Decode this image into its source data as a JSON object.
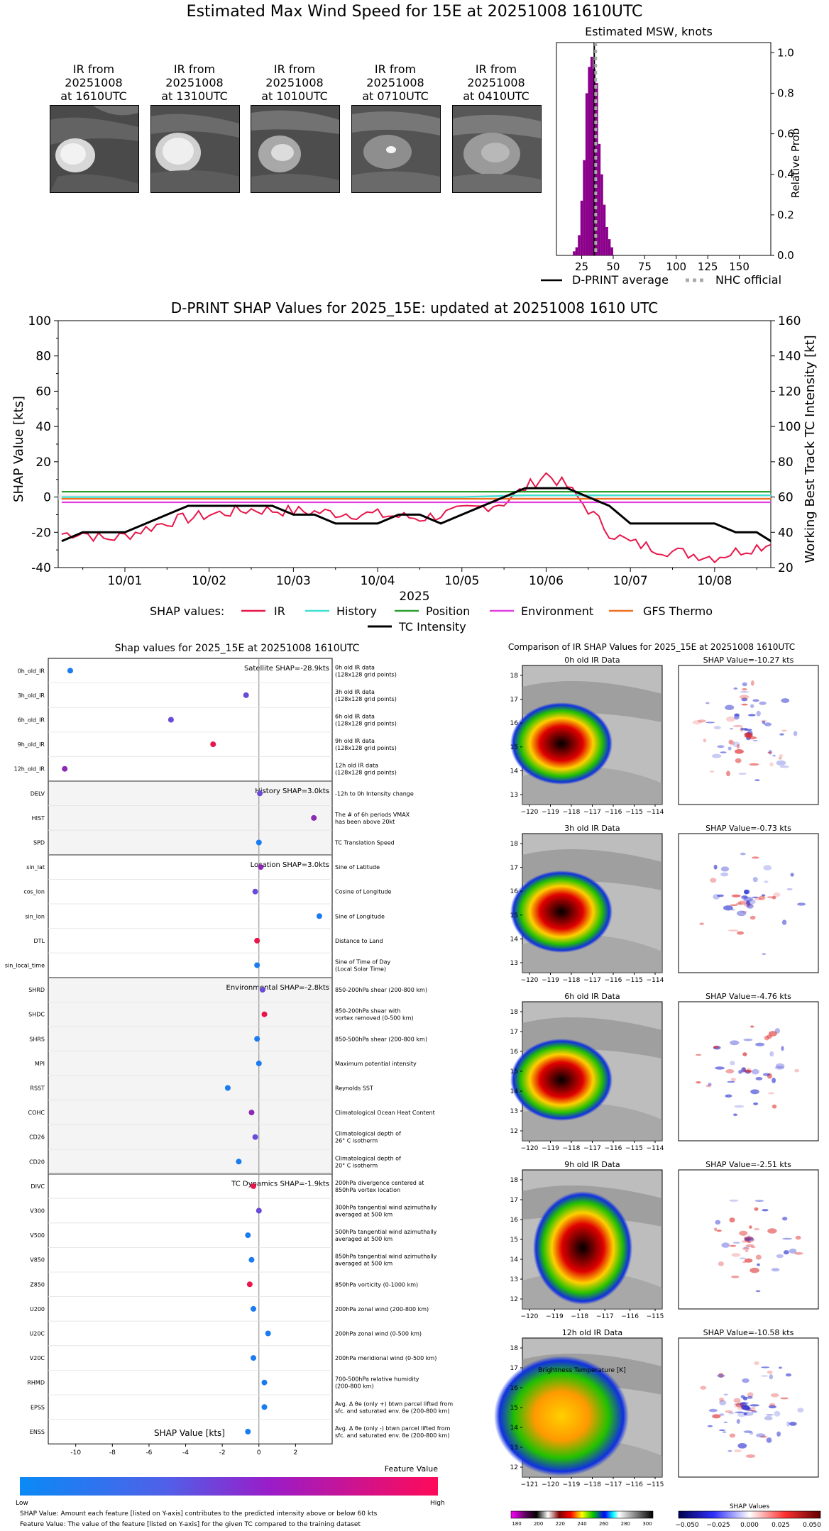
{
  "header": {
    "title": "Estimated Max Wind Speed for 15E at 20251008 1610UTC"
  },
  "ir_thumbnails": [
    {
      "l1": "IR from",
      "l2": "20251008",
      "l3": "at 1610UTC"
    },
    {
      "l1": "IR from",
      "l2": "20251008",
      "l3": "at 1310UTC"
    },
    {
      "l1": "IR from",
      "l2": "20251008",
      "l3": "at 1010UTC"
    },
    {
      "l1": "IR from",
      "l2": "20251008",
      "l3": "at 0710UTC"
    },
    {
      "l1": "IR from",
      "l2": "20251008",
      "l3": "at 0410UTC"
    }
  ],
  "msw_chart": {
    "title": "Estimated MSW, knots",
    "ylabel": "Relative Prob",
    "xticks": [
      "25",
      "50",
      "75",
      "100",
      "125",
      "150"
    ],
    "yticks": [
      "0.0",
      "0.2",
      "0.4",
      "0.6",
      "0.8",
      "1.0"
    ],
    "legend": {
      "avg": "D-PRINT average",
      "nhc": "NHC official"
    }
  },
  "shap_ts": {
    "title": "D-PRINT SHAP Values for 2025_15E: updated at 20251008 1610 UTC",
    "ylabel_left": "SHAP Value [kts]",
    "ylabel_right": "Working Best Track TC Intensity [kt]",
    "xlabel": "2025",
    "yticks_left": [
      "-40",
      "-20",
      "0",
      "20",
      "40",
      "60",
      "80",
      "100"
    ],
    "yticks_right": [
      "20",
      "40",
      "60",
      "80",
      "100",
      "120",
      "140",
      "160"
    ],
    "xticks": [
      "10/01",
      "10/02",
      "10/03",
      "10/04",
      "10/05",
      "10/06",
      "10/07",
      "10/08"
    ],
    "legend_label": "SHAP values:",
    "legend_items": [
      {
        "name": "IR",
        "color": "#e8174b"
      },
      {
        "name": "History",
        "color": "#40e0d0"
      },
      {
        "name": "Position",
        "color": "#2ca02c"
      },
      {
        "name": "Environment",
        "color": "#e040e0"
      },
      {
        "name": "GFS Thermo",
        "color": "#f07020"
      },
      {
        "name": "TC Intensity",
        "color": "#000000"
      }
    ]
  },
  "beeswarm": {
    "title": "Shap values for 2025_15E at 20251008 1610UTC",
    "xlabel": "SHAP Value [kts]",
    "xticks": [
      "-10",
      "-8",
      "-6",
      "-4",
      "-2",
      "0",
      "2"
    ],
    "colorbar_title": "Feature Value",
    "colorbar_low": "Low",
    "colorbar_high": "High",
    "footnote1": "SHAP Value: Amount each feature [listed on Y-axis] contributes to the predicted intensity above or below 60 kts",
    "footnote2": "Feature Value: The value of the feature [listed on Y-axis] for the given TC compared to the training dataset",
    "groups": [
      {
        "label": "Satellite SHAP=-28.9kts",
        "shaded": false
      },
      {
        "label": "History SHAP=3.0kts",
        "shaded": true
      },
      {
        "label": "Location SHAP=3.0kts",
        "shaded": false
      },
      {
        "label": "Environmental SHAP=-2.8kts",
        "shaded": true
      },
      {
        "label": "TC Dynamics SHAP=-1.9kts",
        "shaded": false
      }
    ],
    "features": [
      {
        "name": "0h_old_IR",
        "desc1": "0h old IR data",
        "desc2": "(128x128 grid points)",
        "shap": -10.3,
        "color": "#1a7cf0"
      },
      {
        "name": "3h_old_IR",
        "desc1": "3h old IR data",
        "desc2": "(128x128 grid points)",
        "shap": -0.7,
        "color": "#6a4ad6"
      },
      {
        "name": "6h_old_IR",
        "desc1": "6h old IR data",
        "desc2": "(128x128 grid points)",
        "shap": -4.8,
        "color": "#6a4ad6"
      },
      {
        "name": "9h_old_IR",
        "desc1": "9h old IR data",
        "desc2": "(128x128 grid points)",
        "shap": -2.5,
        "color": "#e8174b"
      },
      {
        "name": "12h_old_IR",
        "desc1": "12h old IR data",
        "desc2": "(128x128 grid points)",
        "shap": -10.6,
        "color": "#8b2bb5"
      },
      {
        "name": "DELV",
        "desc1": "-12h to 0h Intensity change",
        "desc2": "",
        "shap": 0.05,
        "color": "#6a4ad6"
      },
      {
        "name": "HIST",
        "desc1": "The # of 6h periods VMAX",
        "desc2": "has been above 20kt",
        "shap": 3.0,
        "color": "#8b2bb5"
      },
      {
        "name": "SPD",
        "desc1": "TC Translation Speed",
        "desc2": "",
        "shap": 0.0,
        "color": "#1a7cf0"
      },
      {
        "name": "sin_lat",
        "desc1": "Sine of Latitude",
        "desc2": "",
        "shap": 0.1,
        "color": "#8b2bb5"
      },
      {
        "name": "cos_lon",
        "desc1": "Cosine of Longitude",
        "desc2": "",
        "shap": -0.2,
        "color": "#6a4ad6"
      },
      {
        "name": "sin_lon",
        "desc1": "Sine of Longitude",
        "desc2": "",
        "shap": 3.3,
        "color": "#1a7cf0"
      },
      {
        "name": "DTL",
        "desc1": "Distance to Land",
        "desc2": "",
        "shap": -0.1,
        "color": "#e8174b"
      },
      {
        "name": "sin_local_time",
        "desc1": "Sine of Time of Day",
        "desc2": "(Local Solar Time)",
        "shap": -0.1,
        "color": "#1a7cf0"
      },
      {
        "name": "SHRD",
        "desc1": "850-200hPa shear (200-800 km)",
        "desc2": "",
        "shap": 0.2,
        "color": "#6a4ad6"
      },
      {
        "name": "SHDC",
        "desc1": "850-200hPa shear with",
        "desc2": "vortex removed (0-500 km)",
        "shap": 0.3,
        "color": "#e8174b"
      },
      {
        "name": "SHRS",
        "desc1": "850-500hPa shear (200-800 km)",
        "desc2": "",
        "shap": -0.1,
        "color": "#1a7cf0"
      },
      {
        "name": "MPI",
        "desc1": "Maximum potential intensity",
        "desc2": "",
        "shap": 0.0,
        "color": "#1a7cf0"
      },
      {
        "name": "RSST",
        "desc1": "Reynolds SST",
        "desc2": "",
        "shap": -1.7,
        "color": "#1a7cf0"
      },
      {
        "name": "COHC",
        "desc1": "Climatological Ocean Heat Content",
        "desc2": "",
        "shap": -0.4,
        "color": "#8b2bb5"
      },
      {
        "name": "CD26",
        "desc1": "Climatological depth of",
        "desc2": "26° C isotherm",
        "shap": -0.2,
        "color": "#6a4ad6"
      },
      {
        "name": "CD20",
        "desc1": "Climatological depth of",
        "desc2": "20° C isotherm",
        "shap": -1.1,
        "color": "#1a7cf0"
      },
      {
        "name": "DIVC",
        "desc1": "200hPa divergence centered at",
        "desc2": "850hPa vortex location",
        "shap": -0.3,
        "color": "#e8174b"
      },
      {
        "name": "V300",
        "desc1": "300hPa tangential wind azimuthally",
        "desc2": "averaged at 500 km",
        "shap": 0.0,
        "color": "#6a4ad6"
      },
      {
        "name": "V500",
        "desc1": "500hPa tangential wind azimuthally",
        "desc2": "averaged at 500 km",
        "shap": -0.6,
        "color": "#1a7cf0"
      },
      {
        "name": "V850",
        "desc1": "850hPa tangential wind azimuthally",
        "desc2": "averaged at 500 km",
        "shap": -0.4,
        "color": "#1a7cf0"
      },
      {
        "name": "Z850",
        "desc1": "850hPa vorticity (0-1000 km)",
        "desc2": "",
        "shap": -0.5,
        "color": "#e8174b"
      },
      {
        "name": "U200",
        "desc1": "200hPa zonal wind (200-800 km)",
        "desc2": "",
        "shap": -0.3,
        "color": "#1a7cf0"
      },
      {
        "name": "U20C",
        "desc1": "200hPa zonal wind (0-500 km)",
        "desc2": "",
        "shap": 0.5,
        "color": "#1a7cf0"
      },
      {
        "name": "V20C",
        "desc1": "200hPa meridional wind (0-500 km)",
        "desc2": "",
        "shap": -0.3,
        "color": "#1a7cf0"
      },
      {
        "name": "RHMD",
        "desc1": "700-500hPa relative humidity",
        "desc2": "(200-800 km)",
        "shap": 0.3,
        "color": "#1a7cf0"
      },
      {
        "name": "EPSS",
        "desc1": "Avg. Δ θe (only +) btwn parcel lifted from",
        "desc2": "sfc. and saturated env. θe (200-800 km)",
        "shap": 0.3,
        "color": "#1a7cf0"
      },
      {
        "name": "ENSS",
        "desc1": "Avg. Δ θe (only -) btwn parcel lifted from",
        "desc2": "sfc. and saturated env. θe (200-800 km)",
        "shap": -0.6,
        "color": "#1a7cf0"
      }
    ]
  },
  "ir_compare": {
    "title": "Comparison of IR SHAP Values for 2025_15E at 20251008 1610UTC",
    "rows": [
      {
        "left": "0h old IR Data",
        "right": "SHAP Value=-10.27 kts",
        "xt": [
          "−120",
          "−119",
          "−118",
          "−117",
          "−116",
          "−115",
          "−114"
        ],
        "yt": [
          "18",
          "17",
          "16",
          "15",
          "14",
          "13"
        ]
      },
      {
        "left": "3h old IR Data",
        "right": "SHAP Value=-0.73 kts",
        "xt": [
          "−120",
          "−119",
          "−118",
          "−117",
          "−116",
          "−115",
          "−114"
        ],
        "yt": [
          "18",
          "17",
          "16",
          "15",
          "14",
          "13"
        ]
      },
      {
        "left": "6h old IR Data",
        "right": "SHAP Value=-4.76 kts",
        "xt": [
          "−120",
          "−119",
          "−118",
          "−117",
          "−116",
          "−115",
          "−114"
        ],
        "yt": [
          "18",
          "17",
          "16",
          "15",
          "14",
          "13",
          "12"
        ]
      },
      {
        "left": "9h old IR Data",
        "right": "SHAP Value=-2.51 kts",
        "xt": [
          "−120",
          "−119",
          "−118",
          "−117",
          "−116",
          "−115"
        ],
        "yt": [
          "18",
          "17",
          "16",
          "15",
          "14",
          "13",
          "12"
        ]
      },
      {
        "left": "12h old IR Data",
        "right": "SHAP Value=-10.58 kts",
        "xt": [
          "−121",
          "−120",
          "−119",
          "−118",
          "−117",
          "−116",
          "−115"
        ],
        "yt": [
          "18",
          "17",
          "16",
          "15",
          "14",
          "13",
          "12"
        ]
      }
    ],
    "bt_label": "Brightness Temperature [K]",
    "bt_ticks": [
      "180",
      "200",
      "220",
      "240",
      "260",
      "280",
      "300"
    ],
    "sv_label": "SHAP Values",
    "sv_ticks": [
      "−0.050",
      "−0.025",
      "0.000",
      "0.025",
      "0.050"
    ]
  },
  "chart_data": [
    {
      "type": "bar",
      "title": "Estimated MSW, knots",
      "ylabel": "Relative Prob",
      "xlim": [
        5,
        175
      ],
      "ylim": [
        0,
        1.05
      ],
      "x": [
        19,
        21,
        23,
        25,
        27,
        29,
        31,
        33,
        35,
        37,
        39,
        41,
        43,
        45,
        47,
        49
      ],
      "values": [
        0.02,
        0.04,
        0.1,
        0.27,
        0.47,
        0.8,
        0.93,
        0.98,
        0.92,
        0.85,
        0.55,
        0.4,
        0.25,
        0.14,
        0.08,
        0.04
      ],
      "series": [
        {
          "name": "D-PRINT average",
          "value": 35
        },
        {
          "name": "NHC official",
          "value": 35
        }
      ]
    },
    {
      "type": "line",
      "title": "D-PRINT SHAP Values for 2025_15E: updated at 20251008 1610 UTC",
      "xlabel": "2025",
      "ylabel": "SHAP Value [kts]",
      "ylim": [
        -40,
        100
      ],
      "ylim_right": [
        20,
        160
      ],
      "x_range": [
        "09/30 05:00",
        "10/08 16:00"
      ],
      "series": [
        {
          "name": "IR",
          "x": [
            "09/30 06",
            "09/30 12",
            "09/30 18",
            "10/01 00",
            "10/01 12",
            "10/02 00",
            "10/02 12",
            "10/03 00",
            "10/03 12",
            "10/04 00",
            "10/04 12",
            "10/05 00",
            "10/05 12",
            "10/05 18",
            "10/06 00",
            "10/06 06",
            "10/06 12",
            "10/06 18",
            "10/07 00",
            "10/07 12",
            "10/08 00",
            "10/08 12",
            "10/08 16"
          ],
          "values": [
            -21,
            -20,
            -24,
            -22,
            -14,
            -10,
            -7,
            -8,
            -9,
            -10,
            -12,
            -8,
            -3,
            5,
            13,
            6,
            -7,
            -20,
            -26,
            -31,
            -34,
            -28,
            -27
          ]
        },
        {
          "name": "History",
          "x": [
            "09/30 06",
            "10/05 00",
            "10/05 18",
            "10/06 12",
            "10/08 16"
          ],
          "values": [
            0,
            0,
            1,
            1,
            1
          ]
        },
        {
          "name": "Position",
          "x": [
            "09/30 06",
            "10/08 16"
          ],
          "values": [
            3,
            3
          ]
        },
        {
          "name": "Environment",
          "x": [
            "09/30 06",
            "10/08 16"
          ],
          "values": [
            -3,
            -3
          ]
        },
        {
          "name": "GFS Thermo",
          "x": [
            "09/30 06",
            "10/08 16"
          ],
          "values": [
            -1,
            -1
          ]
        },
        {
          "name": "TC Intensity",
          "x": [
            "09/30 06",
            "09/30 12",
            "09/30 18",
            "10/01 00",
            "10/01 06",
            "10/01 12",
            "10/01 18",
            "10/02 00",
            "10/02 06",
            "10/02 12",
            "10/02 18",
            "10/03 00",
            "10/03 06",
            "10/03 12",
            "10/03 18",
            "10/04 00",
            "10/04 06",
            "10/04 12",
            "10/04 18",
            "10/05 00",
            "10/05 06",
            "10/05 12",
            "10/05 18",
            "10/06 00",
            "10/06 06",
            "10/06 12",
            "10/06 18",
            "10/07 00",
            "10/07 06",
            "10/07 12",
            "10/07 18",
            "10/08 00",
            "10/08 06",
            "10/08 12",
            "10/08 16"
          ],
          "values": [
            35,
            40,
            40,
            40,
            45,
            50,
            55,
            55,
            55,
            55,
            55,
            50,
            50,
            45,
            45,
            45,
            50,
            50,
            45,
            50,
            55,
            60,
            65,
            65,
            65,
            60,
            55,
            45,
            45,
            45,
            45,
            45,
            40,
            40,
            35
          ]
        }
      ]
    },
    {
      "type": "scatter",
      "title": "Shap values for 2025_15E at 20251008 1610UTC",
      "xlabel": "SHAP Value [kts]",
      "xlim": [
        -11.5,
        4
      ],
      "categories": [
        "0h_old_IR",
        "3h_old_IR",
        "6h_old_IR",
        "9h_old_IR",
        "12h_old_IR",
        "DELV",
        "HIST",
        "SPD",
        "sin_lat",
        "cos_lon",
        "sin_lon",
        "DTL",
        "sin_local_time",
        "SHRD",
        "SHDC",
        "SHRS",
        "MPI",
        "RSST",
        "COHC",
        "CD26",
        "CD20",
        "DIVC",
        "V300",
        "V500",
        "V850",
        "Z850",
        "U200",
        "U20C",
        "V20C",
        "RHMD",
        "EPSS",
        "ENSS"
      ],
      "values": [
        -10.3,
        -0.7,
        -4.8,
        -2.5,
        -10.6,
        0.05,
        3.0,
        0.0,
        0.1,
        -0.2,
        3.3,
        -0.1,
        -0.1,
        0.2,
        0.3,
        -0.1,
        0.0,
        -1.7,
        -0.4,
        -0.2,
        -1.1,
        -0.3,
        0.0,
        -0.6,
        -0.4,
        -0.5,
        -0.3,
        0.5,
        -0.3,
        0.3,
        0.3,
        -0.6
      ]
    }
  ]
}
